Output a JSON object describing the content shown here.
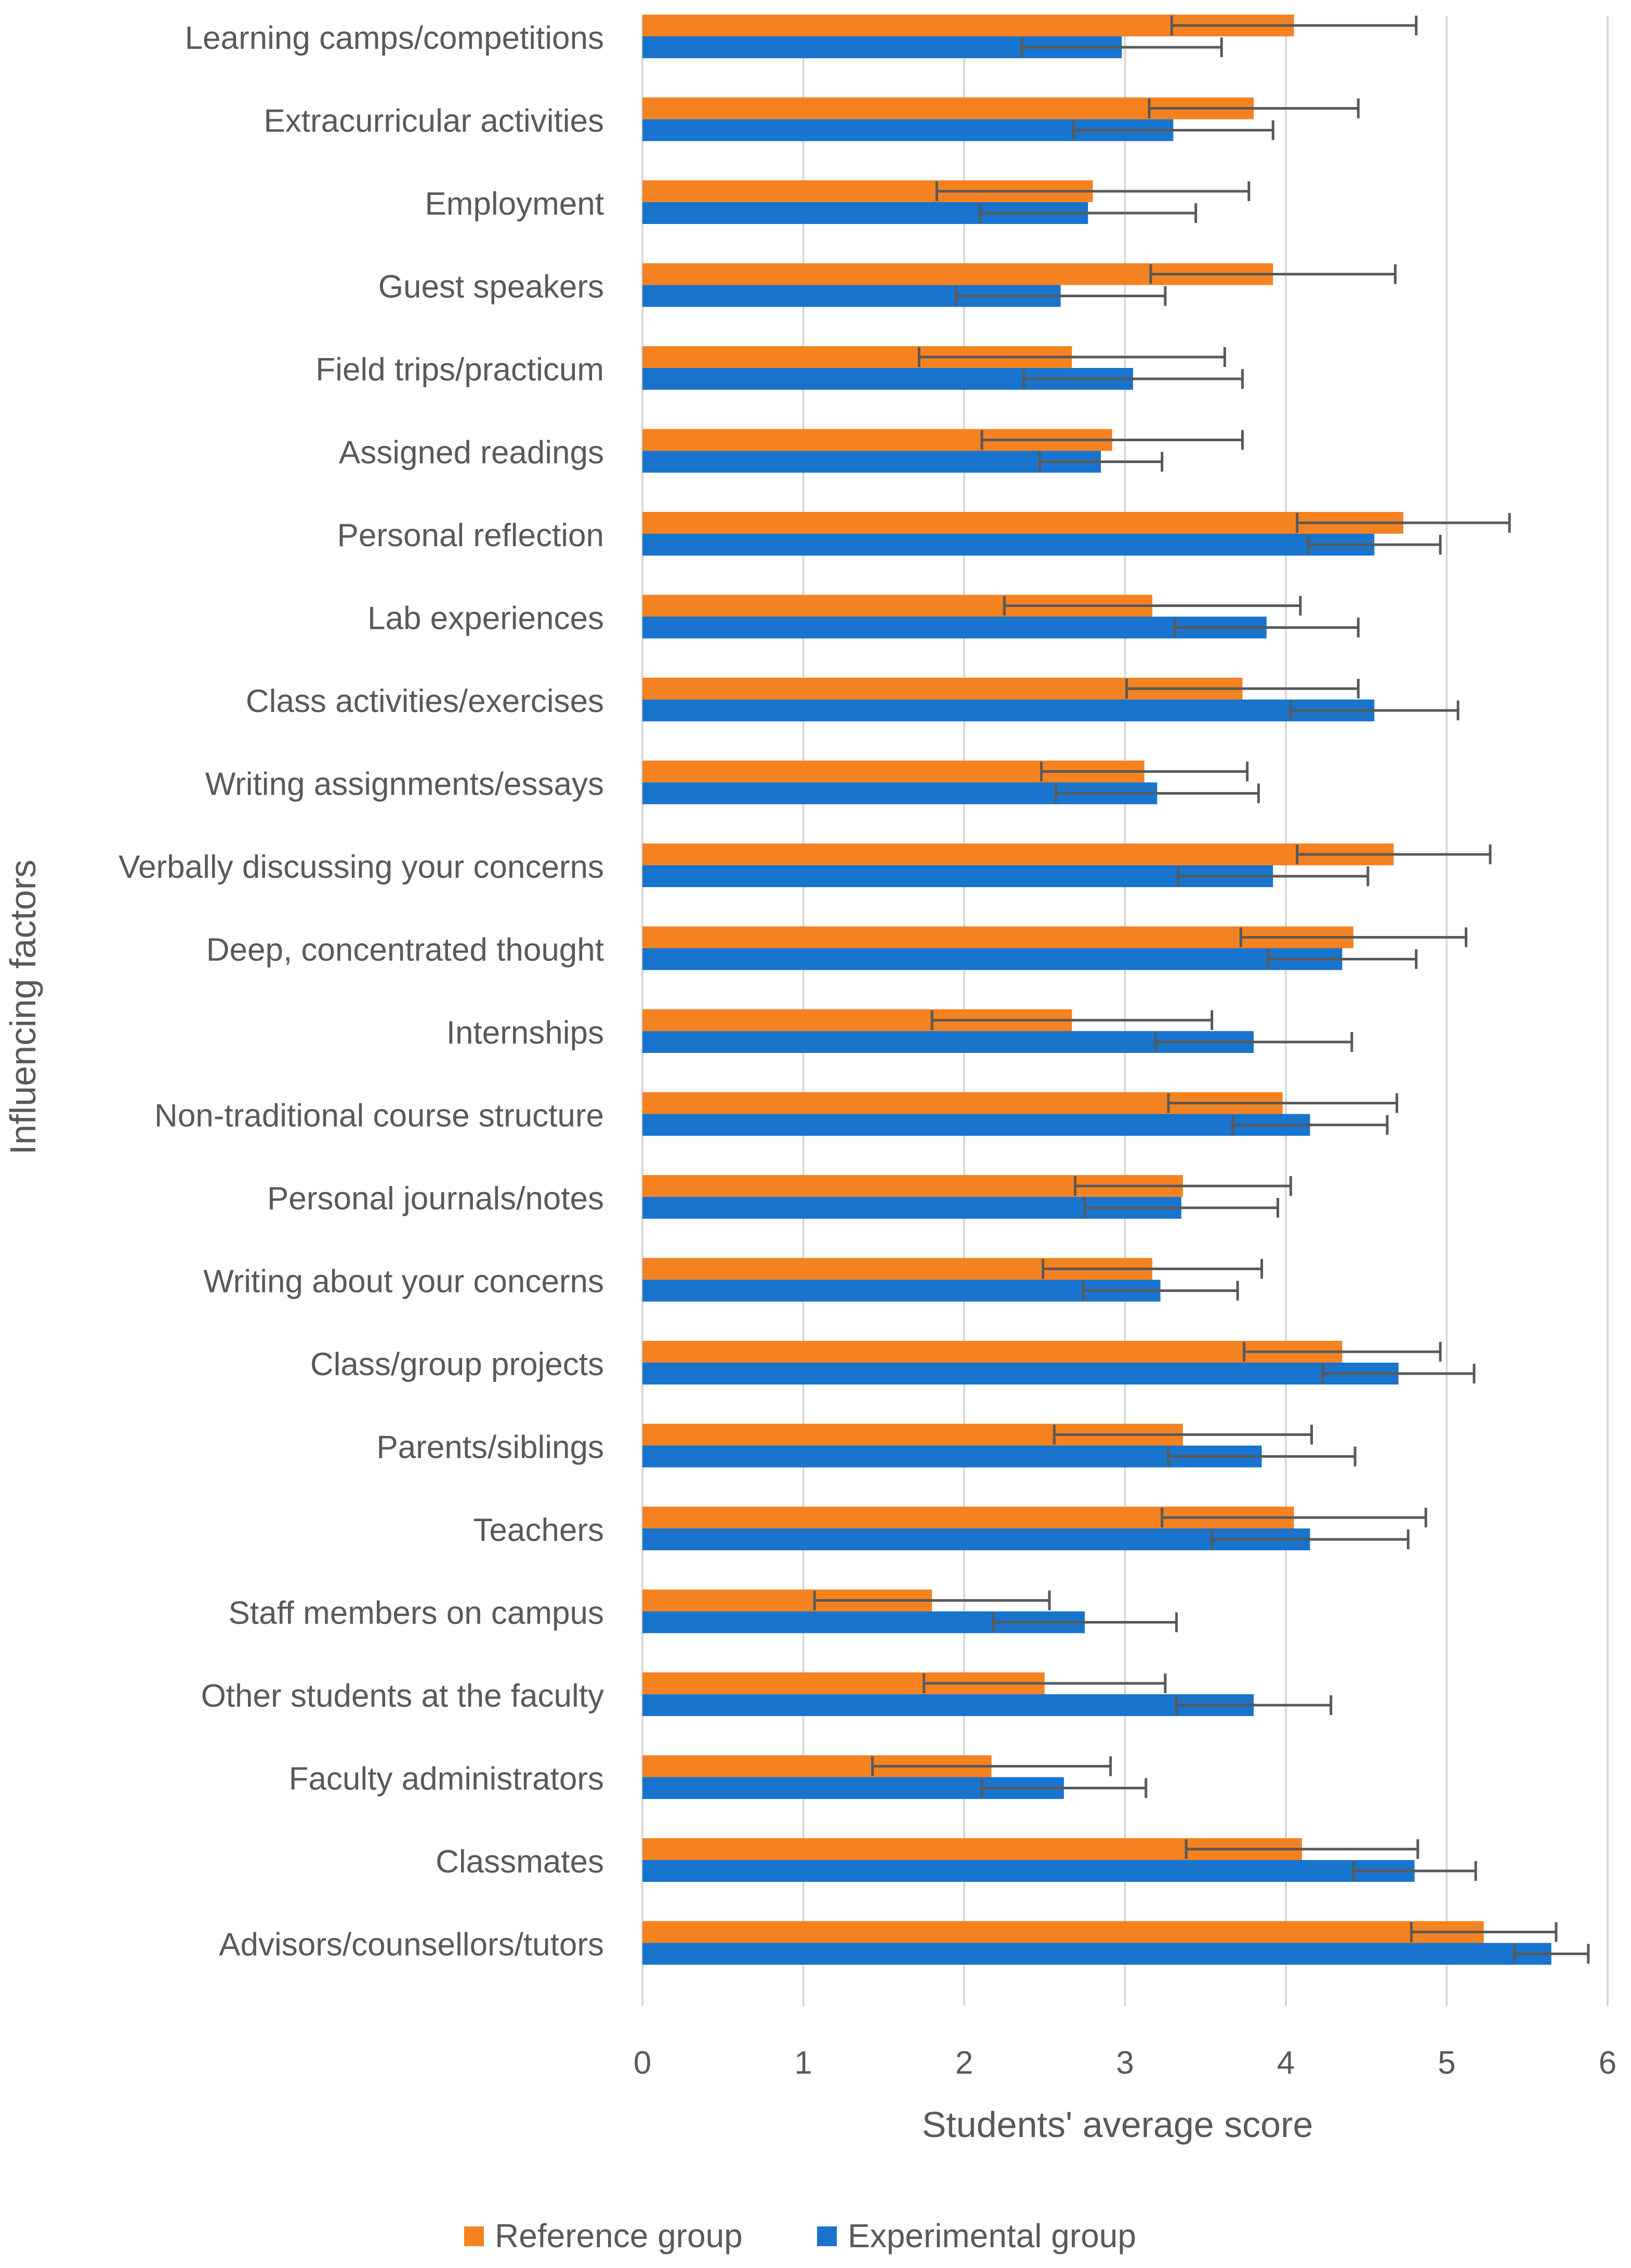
{
  "chart_data": {
    "type": "bar",
    "orientation": "horizontal",
    "title": "",
    "xlabel": "Students' average score",
    "ylabel": "Influencing factors",
    "xlim": [
      0,
      6
    ],
    "x_ticks": [
      "0",
      "1",
      "2",
      "3",
      "4",
      "5",
      "6"
    ],
    "grid": "vertical",
    "legend_position": "bottom",
    "error_bars": true,
    "categories": [
      "Learning camps/competitions",
      "Extracurricular activities",
      "Employment",
      "Guest speakers",
      "Field trips/practicum",
      "Assigned readings",
      "Personal reflection",
      "Lab experiences",
      "Class activities/exercises",
      "Writing assignments/essays",
      "Verbally discussing your concerns",
      "Deep, concentrated thought",
      "Internships",
      "Non-traditional course structure",
      "Personal journals/notes",
      "Writing about your concerns",
      "Class/group projects",
      "Parents/siblings",
      "Teachers",
      "Staff members on campus",
      "Other students at the faculty",
      "Faculty administrators",
      "Classmates",
      "Advisors/counsellors/tutors"
    ],
    "series": [
      {
        "name": "Reference group",
        "color": "#F58220",
        "values": [
          4.05,
          3.8,
          2.8,
          3.92,
          2.67,
          2.92,
          4.73,
          3.17,
          3.73,
          3.12,
          4.67,
          4.42,
          2.67,
          3.98,
          3.36,
          3.17,
          4.35,
          3.36,
          4.05,
          1.8,
          2.5,
          2.17,
          4.1,
          5.23
        ],
        "errors": [
          0.76,
          0.65,
          0.97,
          0.76,
          0.95,
          0.81,
          0.66,
          0.92,
          0.72,
          0.64,
          0.6,
          0.7,
          0.87,
          0.71,
          0.67,
          0.68,
          0.61,
          0.8,
          0.82,
          0.73,
          0.75,
          0.74,
          0.72,
          0.45
        ],
        "error_color": "#595959"
      },
      {
        "name": "Experimental group",
        "color": "#1874CD",
        "values": [
          2.98,
          3.3,
          2.77,
          2.6,
          3.05,
          2.85,
          4.55,
          3.88,
          4.55,
          3.2,
          3.92,
          4.35,
          3.8,
          4.15,
          3.35,
          3.22,
          4.7,
          3.85,
          4.15,
          2.75,
          3.8,
          2.62,
          4.8,
          5.65
        ],
        "errors": [
          0.62,
          0.62,
          0.67,
          0.65,
          0.68,
          0.38,
          0.41,
          0.57,
          0.52,
          0.63,
          0.59,
          0.46,
          0.61,
          0.48,
          0.6,
          0.48,
          0.47,
          0.58,
          0.61,
          0.57,
          0.48,
          0.51,
          0.38,
          0.23
        ],
        "error_color": "#595959"
      }
    ]
  },
  "colors": {
    "axis_text": "#595959",
    "grid": "#D9D9D9",
    "error_bar": "#595959"
  }
}
